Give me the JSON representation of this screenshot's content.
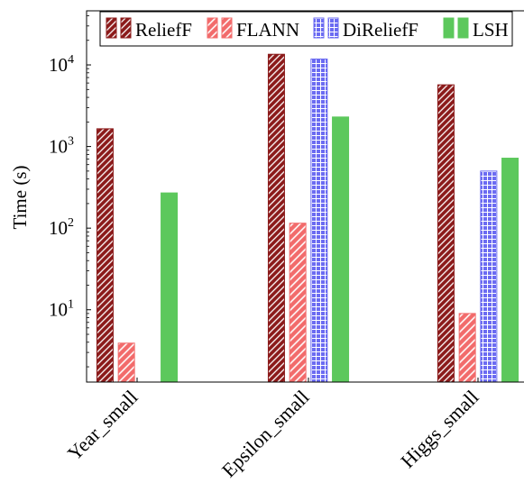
{
  "chart_data": {
    "type": "bar",
    "categories": [
      "Year_small",
      "Epsilon_small",
      "Higgs_small"
    ],
    "series": [
      {
        "name": "ReliefF",
        "values": [
          1650,
          13500,
          5700
        ],
        "color": "#8b1a1a",
        "pattern": "hatch-dense"
      },
      {
        "name": "FLANN",
        "values": [
          3.9,
          115,
          9.0
        ],
        "color": "#f26b6b",
        "pattern": "hatch-sparse"
      },
      {
        "name": "DiReliefF",
        "values": [
          null,
          11800,
          500
        ],
        "color": "#6b6bf2",
        "pattern": "grid"
      },
      {
        "name": "LSH",
        "values": [
          270,
          2300,
          720
        ],
        "color": "#5cc85c",
        "pattern": "solid"
      }
    ],
    "xlabel": "",
    "ylabel": "Time (s)",
    "yscale": "log",
    "ylim": [
      1.3,
      46000
    ],
    "yticks": [
      {
        "value": 10,
        "base": "10",
        "exp": "1"
      },
      {
        "value": 100,
        "base": "10",
        "exp": "2"
      },
      {
        "value": 1000,
        "base": "10",
        "exp": "3"
      },
      {
        "value": 10000,
        "base": "10",
        "exp": "4"
      }
    ],
    "legend_position": "top",
    "grid": false
  }
}
